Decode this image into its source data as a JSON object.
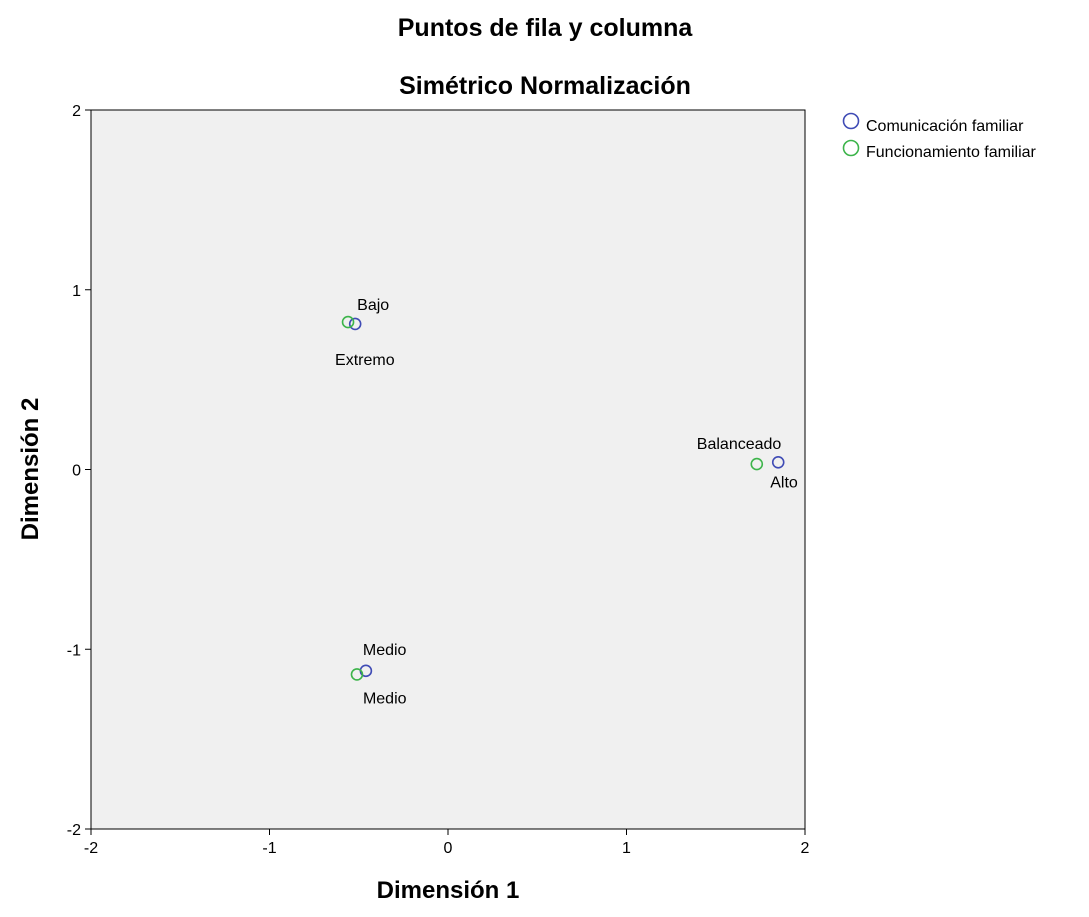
{
  "chart_data": {
    "type": "scatter",
    "title": "Puntos de fila y columna",
    "subtitle": "Simétrico Normalización",
    "xlabel": "Dimensión 1",
    "ylabel": "Dimensión 2",
    "xlim": [
      -2,
      2
    ],
    "ylim": [
      -2,
      2
    ],
    "xticks": [
      "-2",
      "-1",
      "0",
      "1",
      "2"
    ],
    "yticks": [
      "2",
      "1",
      "0",
      "-1",
      "-2"
    ],
    "grid": false,
    "legend_position": "top-right",
    "series": [
      {
        "name": "Comunicación familiar",
        "color": "#3f4bb5",
        "points": [
          {
            "label": "Bajo",
            "x": -0.52,
            "y": 0.81
          },
          {
            "label": "Alto",
            "x": 1.85,
            "y": 0.04
          },
          {
            "label": "Medio",
            "x": -0.46,
            "y": -1.12
          }
        ]
      },
      {
        "name": "Funcionamiento familiar",
        "color": "#3cb44a",
        "points": [
          {
            "label": "Extremo",
            "x": -0.56,
            "y": 0.82
          },
          {
            "label": "Balanceado",
            "x": 1.73,
            "y": 0.03
          },
          {
            "label": "Medio",
            "x": -0.51,
            "y": -1.14
          }
        ]
      }
    ]
  }
}
